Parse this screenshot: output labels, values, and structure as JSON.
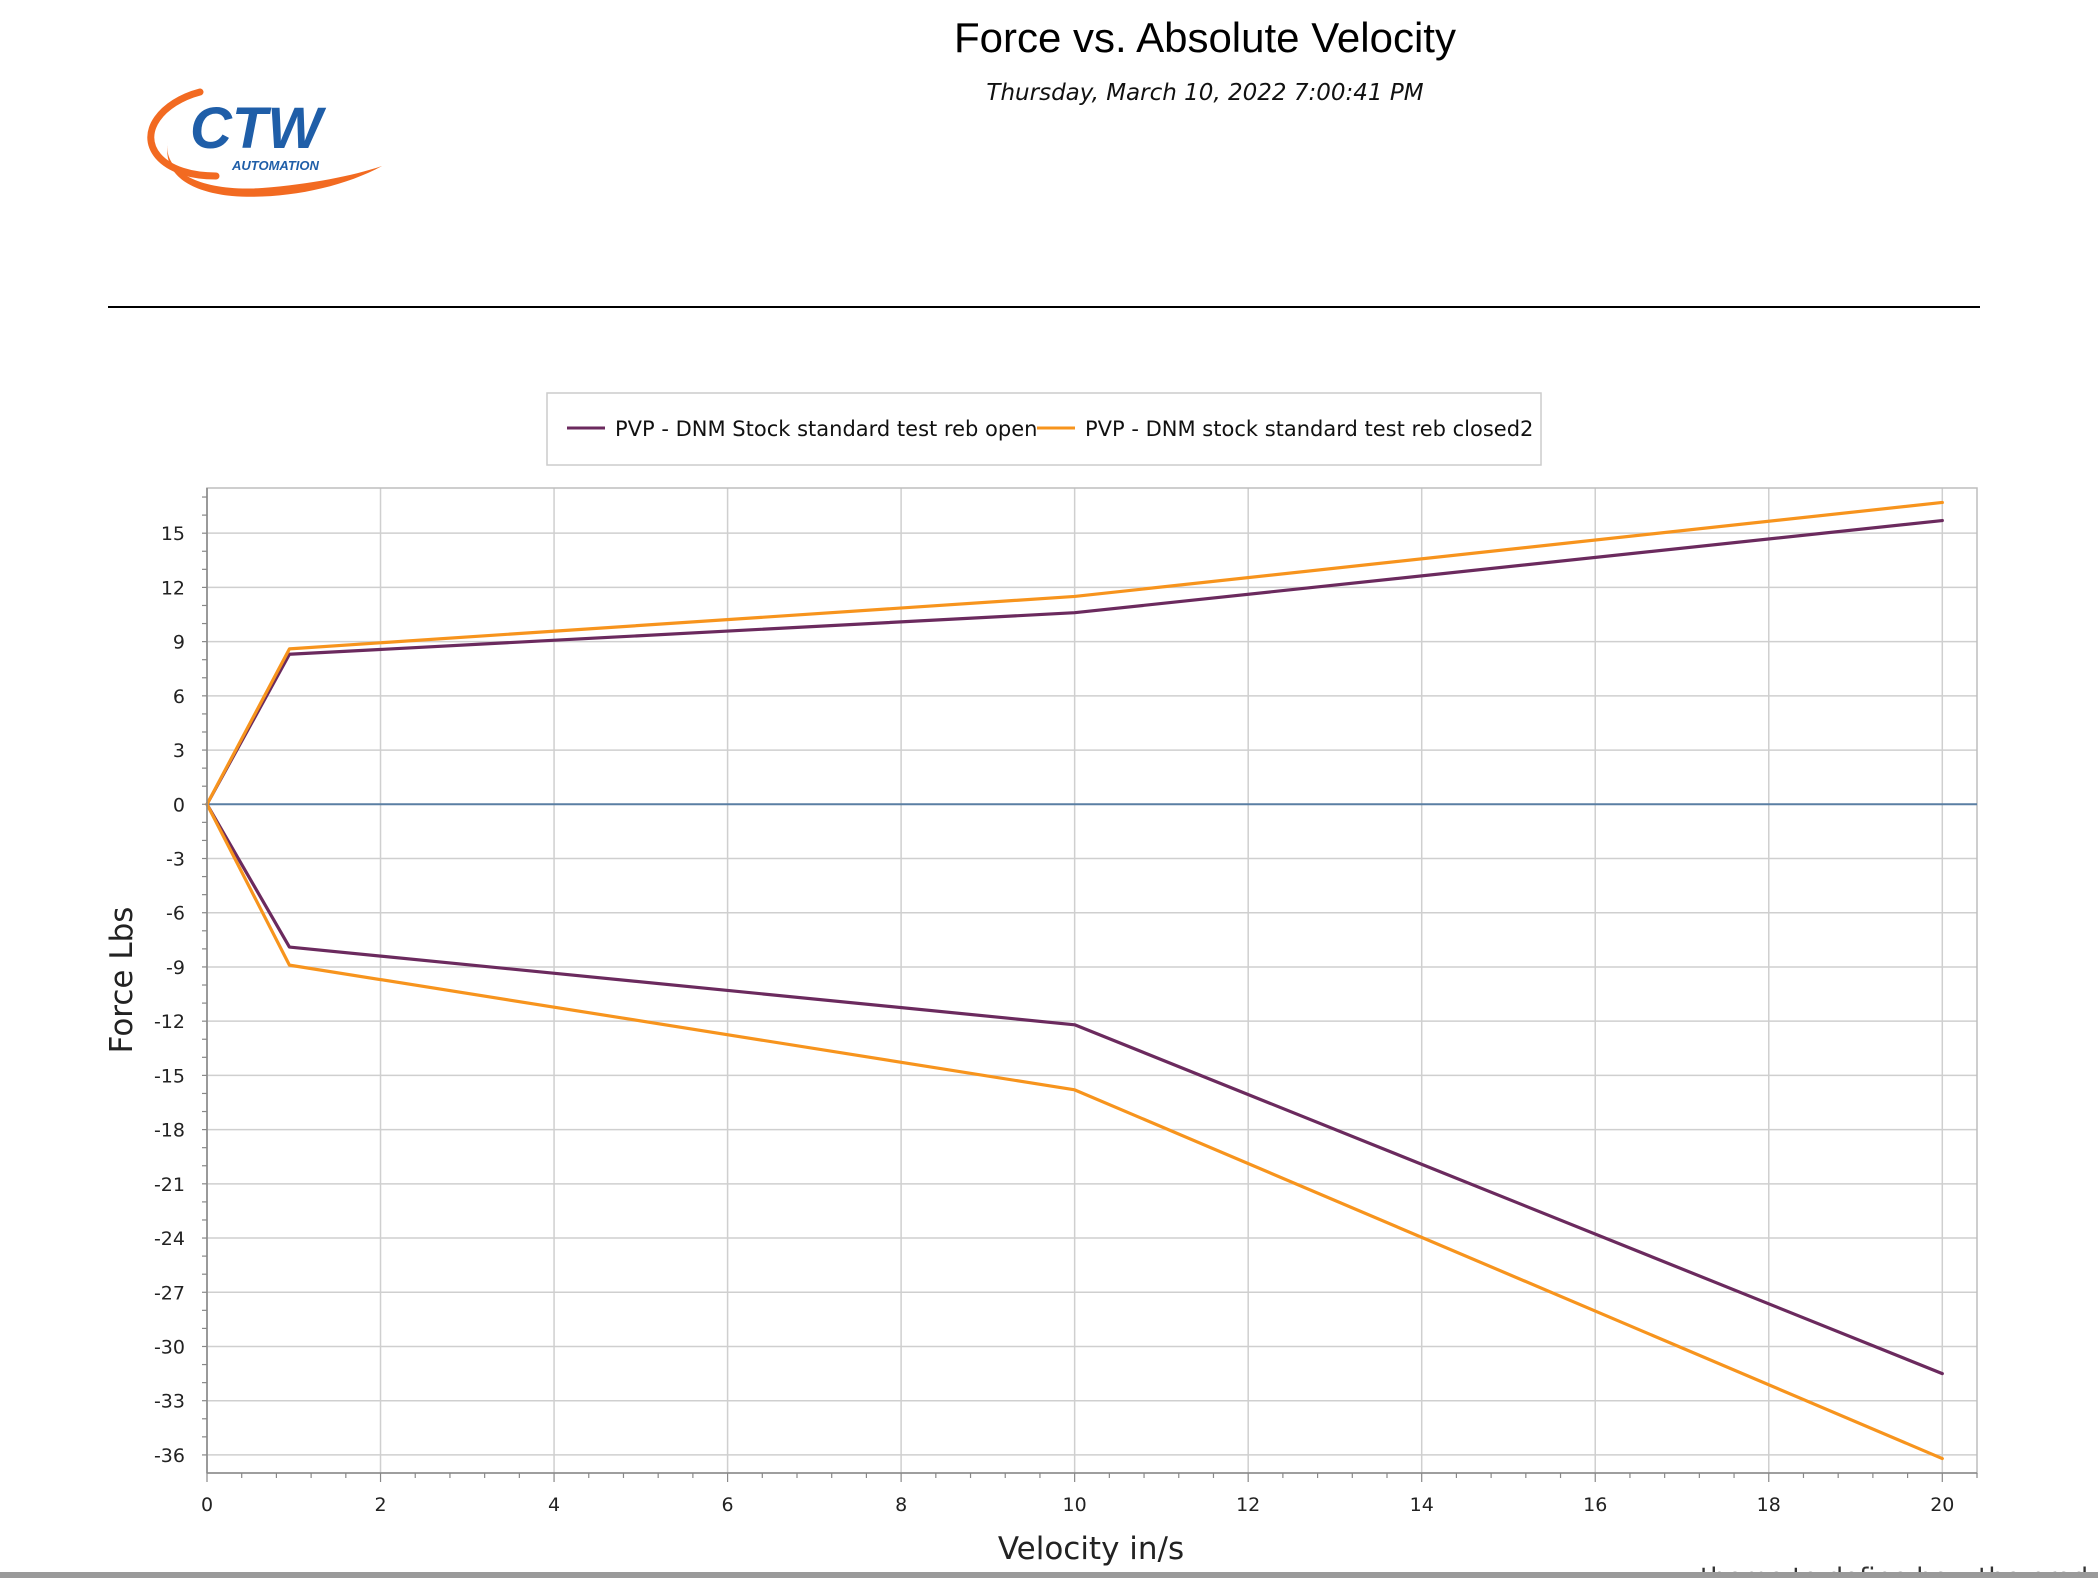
{
  "report": {
    "title": "Force vs. Absolute Velocity",
    "timestamp": "Thursday, March 10, 2022 7:00:41 PM",
    "logo_text": "CTW",
    "logo_subtext": "AUTOMATION",
    "footer_cut_text": "theme to define how the product"
  },
  "colors": {
    "series_open": "#6b2a5e",
    "series_closed": "#f7941d",
    "zero_line": "#5a7fa3",
    "grid": "#cfcfcf",
    "logo_blue": "#1f5ea8",
    "logo_orange": "#f26a21"
  },
  "chart_data": {
    "type": "line",
    "title": "",
    "xlabel": "Velocity in/s",
    "ylabel": "Force Lbs",
    "xlim": [
      0,
      20.4
    ],
    "ylim": [
      -37,
      17.5
    ],
    "x_ticks": [
      0,
      2,
      4,
      6,
      8,
      10,
      12,
      14,
      16,
      18,
      20
    ],
    "y_ticks": [
      15,
      12,
      9,
      6,
      3,
      0,
      -3,
      -6,
      -9,
      -12,
      -15,
      -18,
      -21,
      -24,
      -27,
      -30,
      -33,
      -36
    ],
    "grid": true,
    "legend_position": "top",
    "series": [
      {
        "name": "PVP - DNM Stock standard test reb open",
        "color": "#6b2a5e",
        "branches": [
          {
            "x": [
              0,
              0.95,
              10,
              20
            ],
            "y": [
              0,
              8.3,
              10.6,
              15.7
            ]
          },
          {
            "x": [
              0,
              0.95,
              10,
              20
            ],
            "y": [
              0,
              -7.9,
              -12.2,
              -31.5
            ]
          }
        ]
      },
      {
        "name": "PVP - DNM stock standard test reb closed2",
        "color": "#f7941d",
        "branches": [
          {
            "x": [
              0,
              0.95,
              10,
              20
            ],
            "y": [
              0,
              8.6,
              11.5,
              16.7
            ]
          },
          {
            "x": [
              0,
              0.95,
              10,
              20
            ],
            "y": [
              0,
              -8.9,
              -15.8,
              -36.2
            ]
          }
        ]
      }
    ]
  }
}
